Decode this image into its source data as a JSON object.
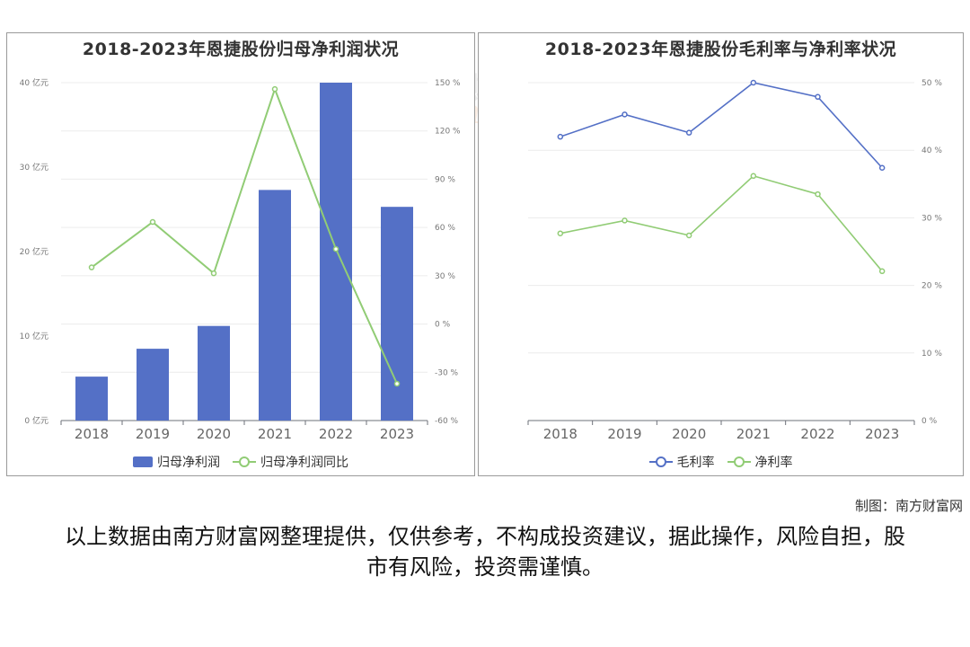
{
  "watermark": {
    "cn": "南方财富网",
    "en": "southmoney.com"
  },
  "credit": "制图：南方财富网",
  "disclaimer": "以上数据由南方财富网整理提供，仅供参考，不构成投资建议，据此操作，风险自担，股市有风险，投资需谨慎。",
  "chart_data": [
    {
      "type": "bar",
      "title": "2018-2023年恩捷股份归母净利润状况",
      "categories": [
        "2018",
        "2019",
        "2020",
        "2021",
        "2022",
        "2023"
      ],
      "series": [
        {
          "name": "归母净利润",
          "type": "bar",
          "axis": "left",
          "color": "#5470c6",
          "values": [
            5.2,
            8.5,
            11.2,
            27.3,
            40.0,
            25.3
          ]
        },
        {
          "name": "归母净利润同比",
          "type": "line",
          "axis": "right",
          "color": "#91cc75",
          "values": [
            35.2,
            63.4,
            31.5,
            146.0,
            46.6,
            -37.1
          ]
        }
      ],
      "left_axis": {
        "min": 0,
        "max": 40,
        "ticks": [
          0,
          10,
          20,
          30,
          40
        ],
        "tick_labels": [
          "0 亿元",
          "10 亿元",
          "20 亿元",
          "30 亿元",
          "40 亿元"
        ]
      },
      "right_axis": {
        "min": -60,
        "max": 150,
        "ticks": [
          -60,
          -30,
          0,
          30,
          60,
          90,
          120,
          150
        ],
        "tick_labels": [
          "-60 %",
          "-30 %",
          "0 %",
          "30 %",
          "60 %",
          "90 %",
          "120 %",
          "150 %"
        ]
      },
      "grid": true,
      "legend_position": "bottom"
    },
    {
      "type": "line",
      "title": "2018-2023年恩捷股份毛利率与净利率状况",
      "categories": [
        "2018",
        "2019",
        "2020",
        "2021",
        "2022",
        "2023"
      ],
      "series": [
        {
          "name": "毛利率",
          "color": "#5470c6",
          "values": [
            42.0,
            45.3,
            42.6,
            50.0,
            47.9,
            37.4
          ]
        },
        {
          "name": "净利率",
          "color": "#91cc75",
          "values": [
            27.7,
            29.6,
            27.4,
            36.2,
            33.5,
            22.1
          ]
        }
      ],
      "right_axis": {
        "min": 0,
        "max": 50,
        "ticks": [
          0,
          10,
          20,
          30,
          40,
          50
        ],
        "tick_labels": [
          "0 %",
          "10 %",
          "20 %",
          "30 %",
          "40 %",
          "50 %"
        ]
      },
      "grid": true,
      "legend_position": "bottom"
    }
  ]
}
